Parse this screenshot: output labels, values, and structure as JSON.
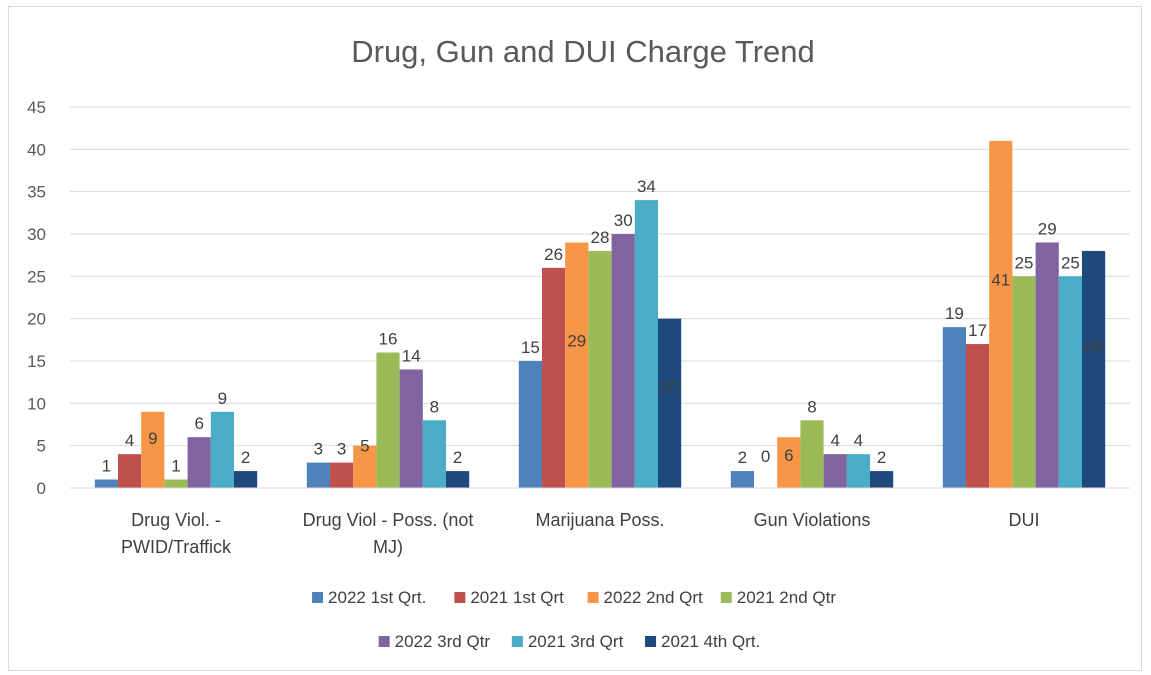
{
  "chart_data": {
    "type": "bar",
    "title": "Drug, Gun and DUI Charge Trend",
    "xlabel": "",
    "ylabel": "",
    "ylim": [
      0,
      45
    ],
    "yticks": [
      0,
      5,
      10,
      15,
      20,
      25,
      30,
      35,
      40,
      45
    ],
    "grid": true,
    "legend_position": "bottom",
    "categories": [
      "Drug Viol. - PWID/Traffick",
      "Drug Viol - Poss. (not MJ)",
      "Marijuana Poss.",
      "Gun Violations",
      "DUI"
    ],
    "category_lines": [
      [
        "Drug Viol. -",
        "PWID/Traffick"
      ],
      [
        "Drug Viol - Poss. (not",
        "MJ)"
      ],
      [
        "Marijuana Poss."
      ],
      [
        "Gun Violations"
      ],
      [
        "DUI"
      ]
    ],
    "series": [
      {
        "name": "2022 1st Qrt.",
        "color": "#4f81bd",
        "values": [
          1,
          3,
          15,
          2,
          19
        ]
      },
      {
        "name": "2021 1st Qrt",
        "color": "#c0504d",
        "values": [
          4,
          3,
          26,
          0,
          17
        ]
      },
      {
        "name": "2022 2nd Qrt",
        "color": "#f79646",
        "values": [
          9,
          5,
          29,
          6,
          41
        ]
      },
      {
        "name": "2021 2nd Qtr",
        "color": "#9bbb59",
        "values": [
          1,
          16,
          28,
          8,
          25
        ]
      },
      {
        "name": "2022 3rd Qtr",
        "color": "#8064a2",
        "values": [
          6,
          14,
          30,
          4,
          29
        ]
      },
      {
        "name": "2021 3rd Qrt",
        "color": "#4bacc6",
        "values": [
          9,
          8,
          34,
          4,
          25
        ]
      },
      {
        "name": "2021 4th Qrt.",
        "color": "#1f497d",
        "values": [
          2,
          2,
          20,
          2,
          28
        ]
      }
    ]
  }
}
